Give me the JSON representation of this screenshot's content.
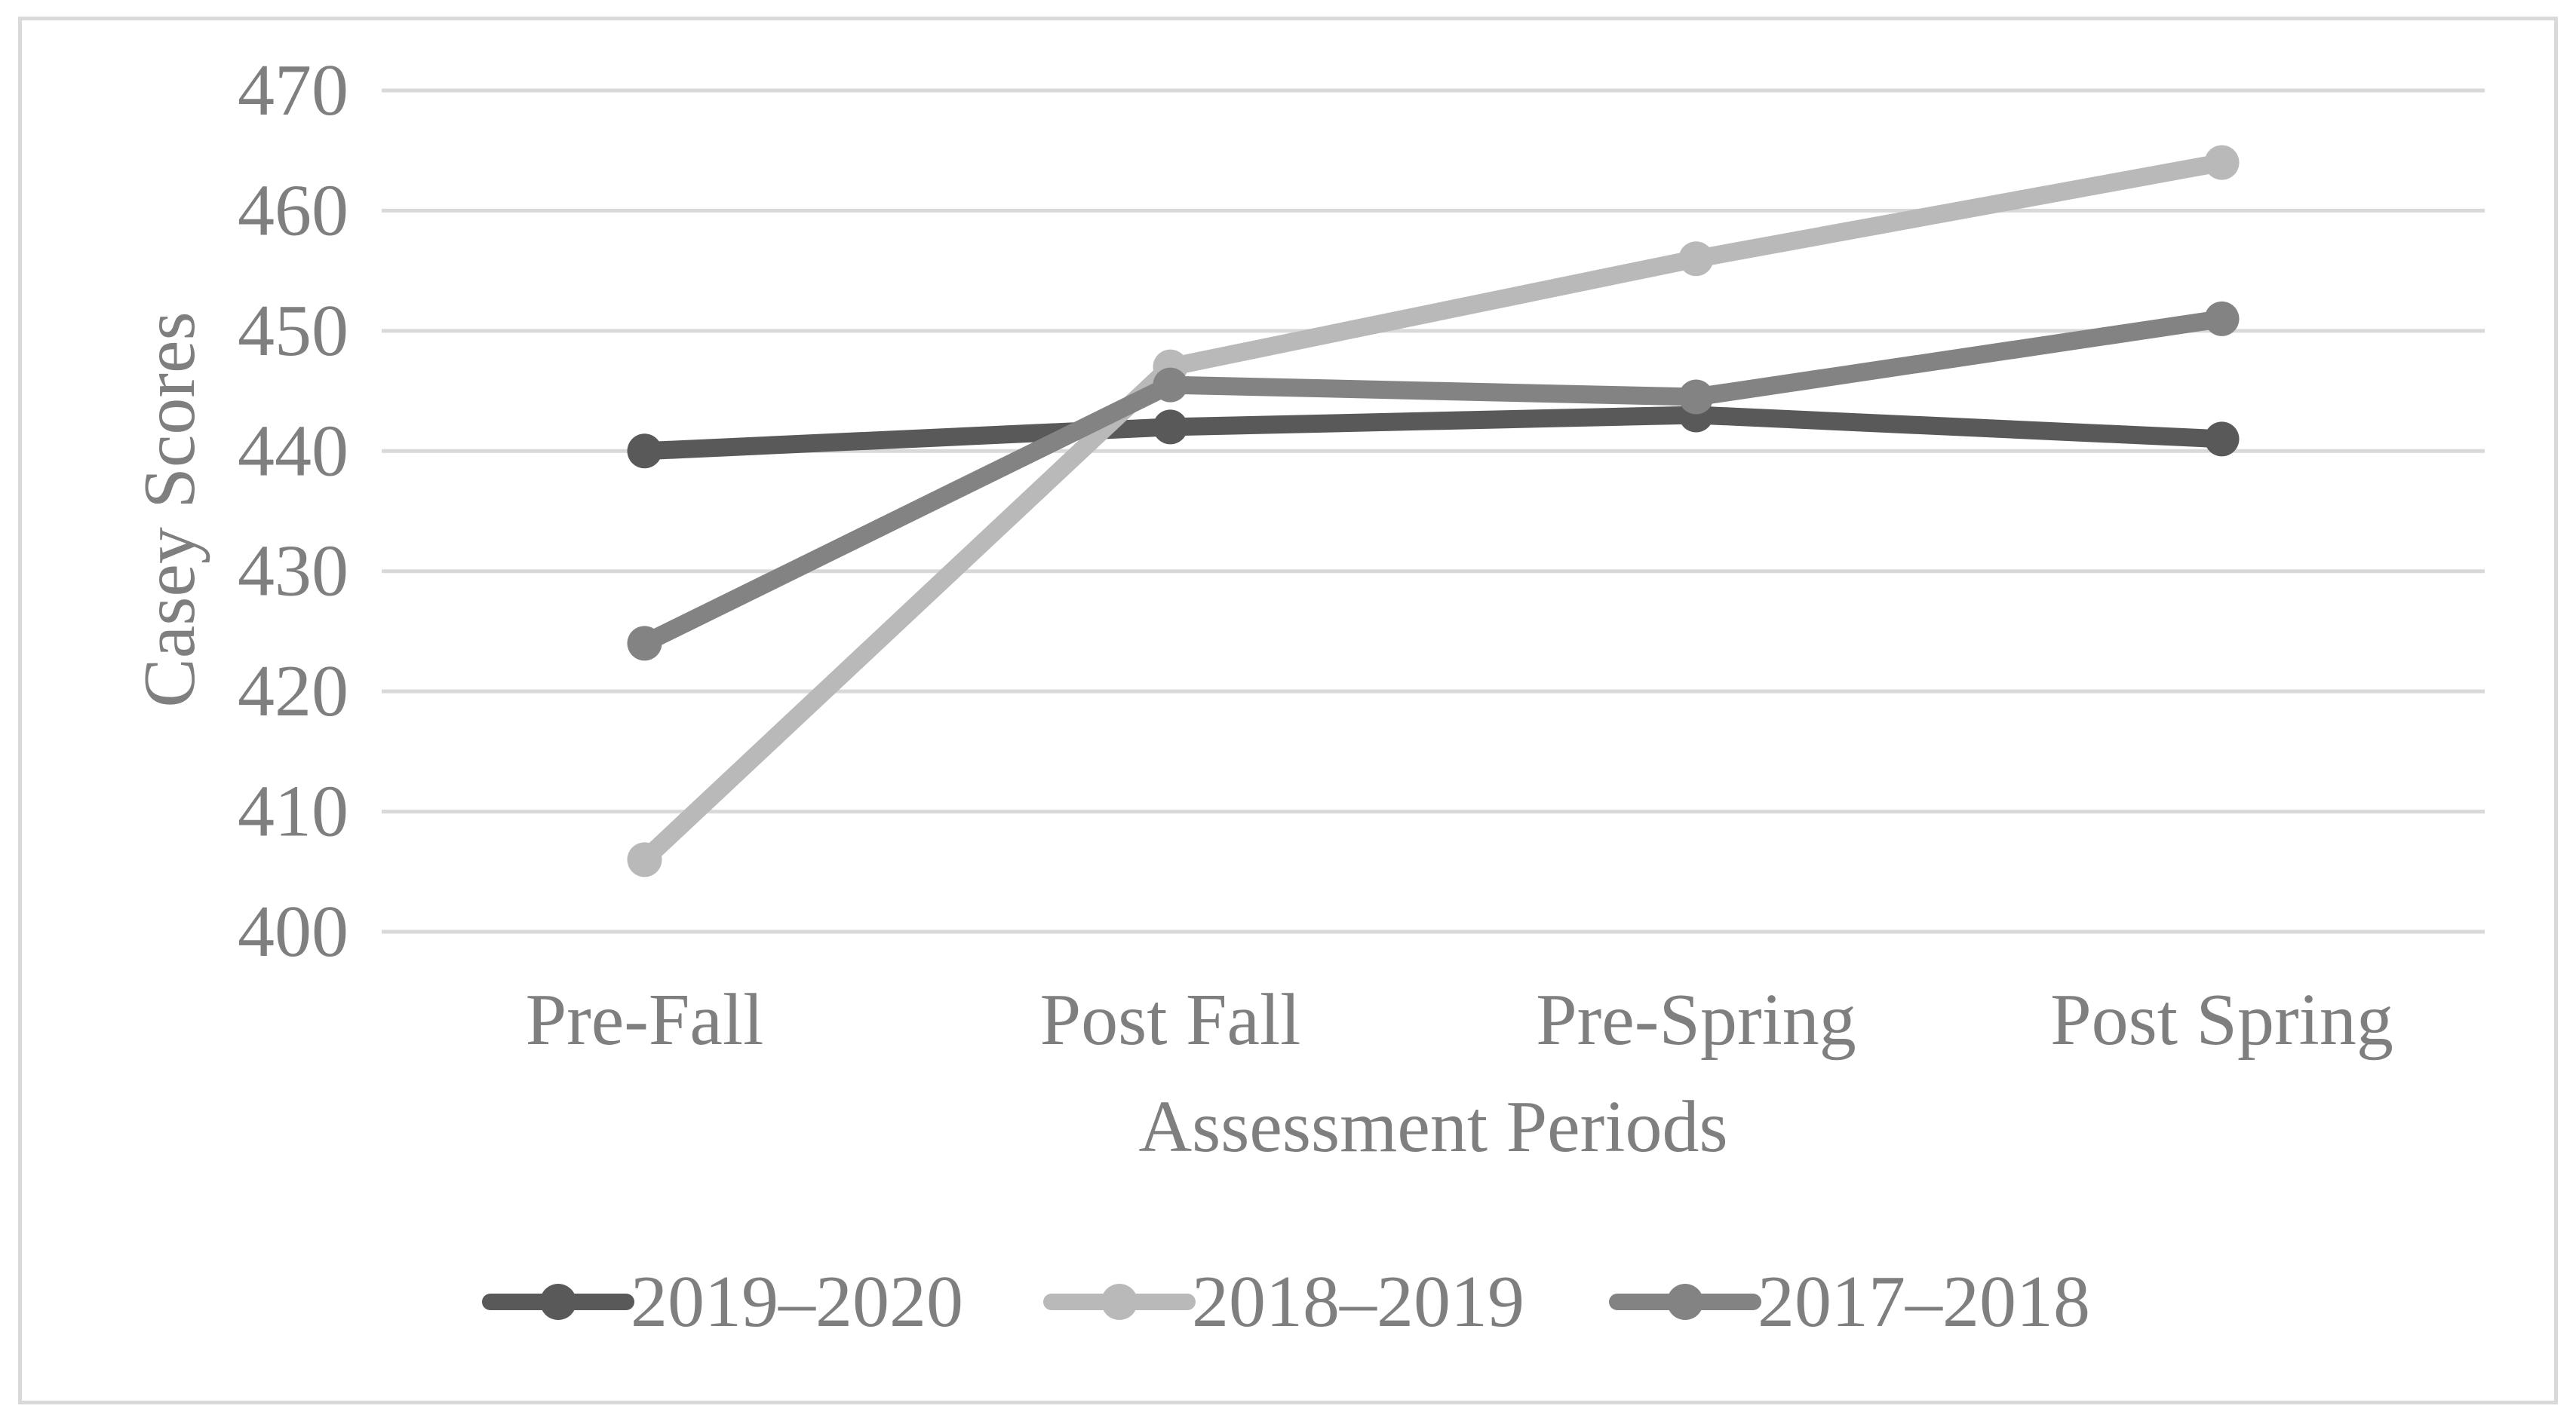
{
  "figure": {
    "background_color": "#ffffff",
    "border_color": "#d9d9d9",
    "gridline_color": "#d9d9d9",
    "axis_text_color": "#7f7f7f"
  },
  "chart_data": {
    "type": "line",
    "title": "",
    "xlabel": "Assessment Periods",
    "ylabel": "Casey Scores",
    "categories": [
      "Pre-Fall",
      "Post Fall",
      "Pre-Spring",
      "Post Spring"
    ],
    "series": [
      {
        "name": "2019–2020",
        "color": "#595959",
        "values": [
          440,
          442,
          443,
          441
        ]
      },
      {
        "name": "2018–2019",
        "color": "#b9b9b9",
        "values": [
          406,
          447,
          456,
          464
        ]
      },
      {
        "name": "2017–2018",
        "color": "#838383",
        "values": [
          424,
          445.5,
          444.5,
          451
        ]
      }
    ],
    "ylim": [
      400,
      470
    ],
    "yticks": [
      400,
      410,
      420,
      430,
      440,
      450,
      460,
      470
    ],
    "grid": true,
    "marker": "circle",
    "legend_position": "bottom",
    "legend_labels": [
      "2019–2020",
      "2018–2019",
      "2017–2018"
    ]
  }
}
